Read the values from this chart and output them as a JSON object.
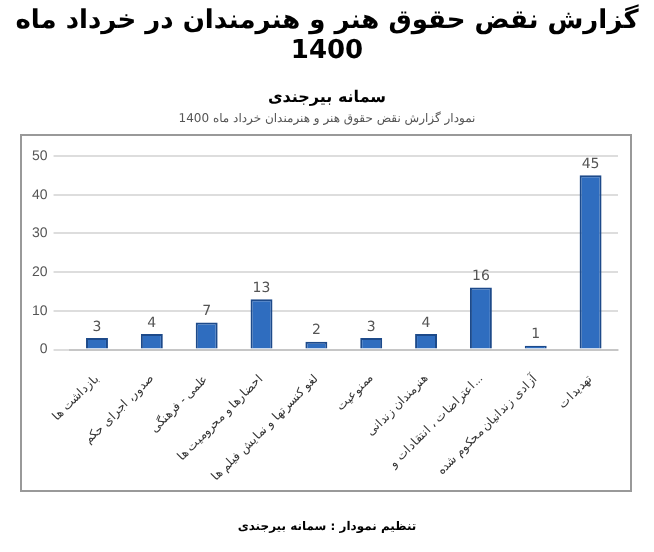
{
  "chart_data": {
    "type": "bar",
    "title": "گزارش نقض حقوق هنر و هنرمندان در خرداد ماه 1400",
    "subtitle": "سمانه بیرجندی",
    "annotations": [
      "نمودار گزارش نقض حقوق هنر و هنرمندان خرداد ماه 1400",
      "تنظیم نمودار : سمانه بیرجندی"
    ],
    "categories": [
      "بازداشت ها",
      "صدور، اجرای حکم",
      "علمی - فرهنگی",
      "احضارها و محرومیت ها",
      "لغو کنسرتها و نمایش فیلم ها",
      "ممنوعیت",
      "هنرمندان زندانی",
      "اعتراضات ، انتقادات و...",
      "آزادی زندانیان محکوم شده",
      "تهدیدات"
    ],
    "values": [
      3,
      4,
      7,
      13,
      2,
      3,
      4,
      16,
      1,
      45
    ],
    "color": "#2f6dbf",
    "ylim": [
      0,
      50
    ],
    "yticks": [
      0,
      10,
      20,
      30,
      40,
      50
    ],
    "grid": "y",
    "data_labels": true,
    "legend": false
  }
}
